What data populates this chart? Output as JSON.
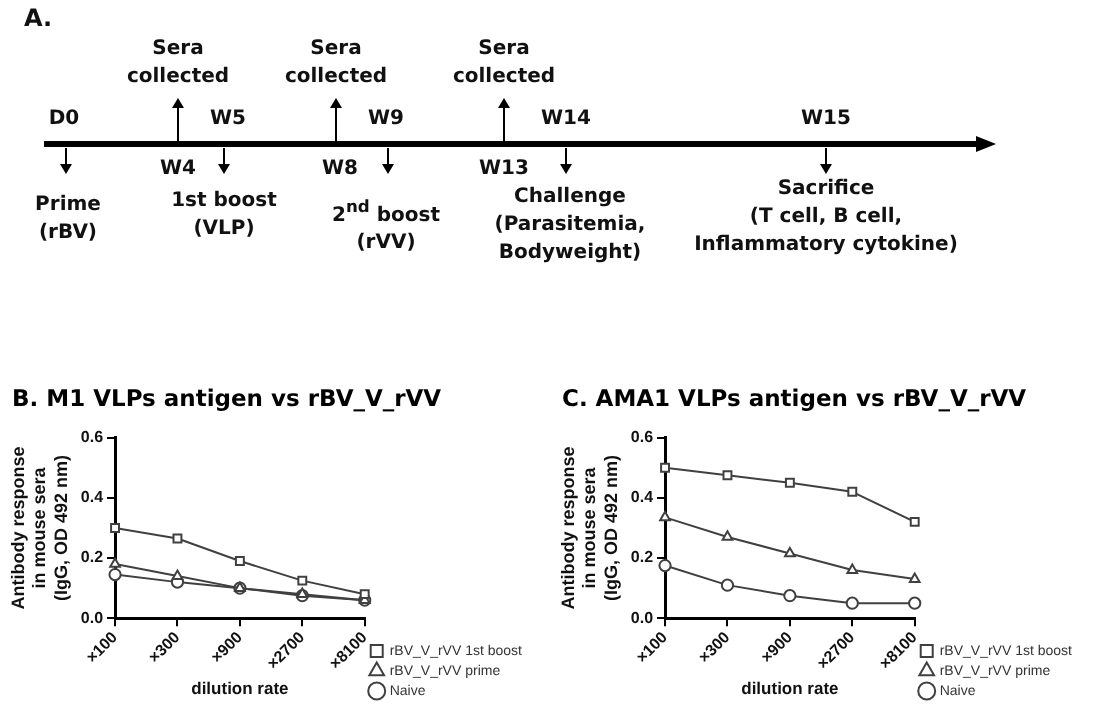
{
  "chart_data": [
    {
      "type": "other",
      "title": "A.",
      "annotations": [
        "Sera\ncollected",
        "Sera\ncollected",
        "Sera\ncollected",
        "D0",
        "W4",
        "W5",
        "W8",
        "W9",
        "W13",
        "W14",
        "W15",
        "Prime\n(rBV)",
        "1st boost\n(VLP)",
        "2$^{nd}$ boost\n(rVV)",
        "Challenge\n(Parasitemia,\nBodyweight)",
        "Sacrifice\n(T cell, B cell,\nInflammatory cytokine)"
      ]
    },
    {
      "type": "line",
      "title": "B. M1 VLPs antigen vs rBV_V_rVV",
      "xlabel": "dilution rate",
      "ylabel": "Antibody response\nin mouse sera\n(IgG, OD 492 nm)",
      "categories": [
        "×100",
        "×300",
        "×900",
        "×2700",
        "×8100"
      ],
      "ylim": [
        0,
        0.6
      ],
      "yticks": [
        {
          "value": 0,
          "label": "0.0"
        },
        0.2,
        0.4,
        0.6
      ],
      "grid": false,
      "legend": "bottom right",
      "series": [
        {
          "name": "rBV_V_rVV 1st boost",
          "color": "#404040",
          "marker": "square",
          "values": [
            0.3,
            0.265,
            0.19,
            0.125,
            0.08
          ]
        },
        {
          "name": "rBV_V_rVV prime",
          "color": "#404040",
          "marker": "triangle",
          "values": [
            0.18,
            0.14,
            0.1,
            0.08,
            0.06
          ]
        },
        {
          "name": "Naive",
          "color": "#404040",
          "marker": "circle",
          "values": [
            0.145,
            0.12,
            0.1,
            0.075,
            0.06
          ]
        }
      ]
    },
    {
      "type": "line",
      "title": "C. AMA1 VLPs antigen vs rBV_V_rVV",
      "xlabel": "dilution rate",
      "ylabel": "Antibody response\nin mouse sera\n(IgG, OD 492 nm)",
      "categories": [
        "×100",
        "×300",
        "×900",
        "×2700",
        "×8100"
      ],
      "ylim": [
        0,
        0.6
      ],
      "yticks": [
        {
          "value": 0,
          "label": "0.0"
        },
        0.2,
        0.4,
        0.6
      ],
      "grid": false,
      "legend": "bottom right",
      "series": [
        {
          "name": "rBV_V_rVV 1st boost",
          "color": "#404040",
          "marker": "square",
          "values": [
            0.5,
            0.475,
            0.45,
            0.42,
            0.32
          ]
        },
        {
          "name": "rBV_V_rVV prime",
          "color": "#404040",
          "marker": "triangle",
          "values": [
            0.335,
            0.27,
            0.215,
            0.16,
            0.13
          ]
        },
        {
          "name": "Naive",
          "color": "#404040",
          "marker": "circle",
          "values": [
            0.175,
            0.11,
            0.075,
            0.05,
            0.05
          ]
        }
      ]
    }
  ]
}
